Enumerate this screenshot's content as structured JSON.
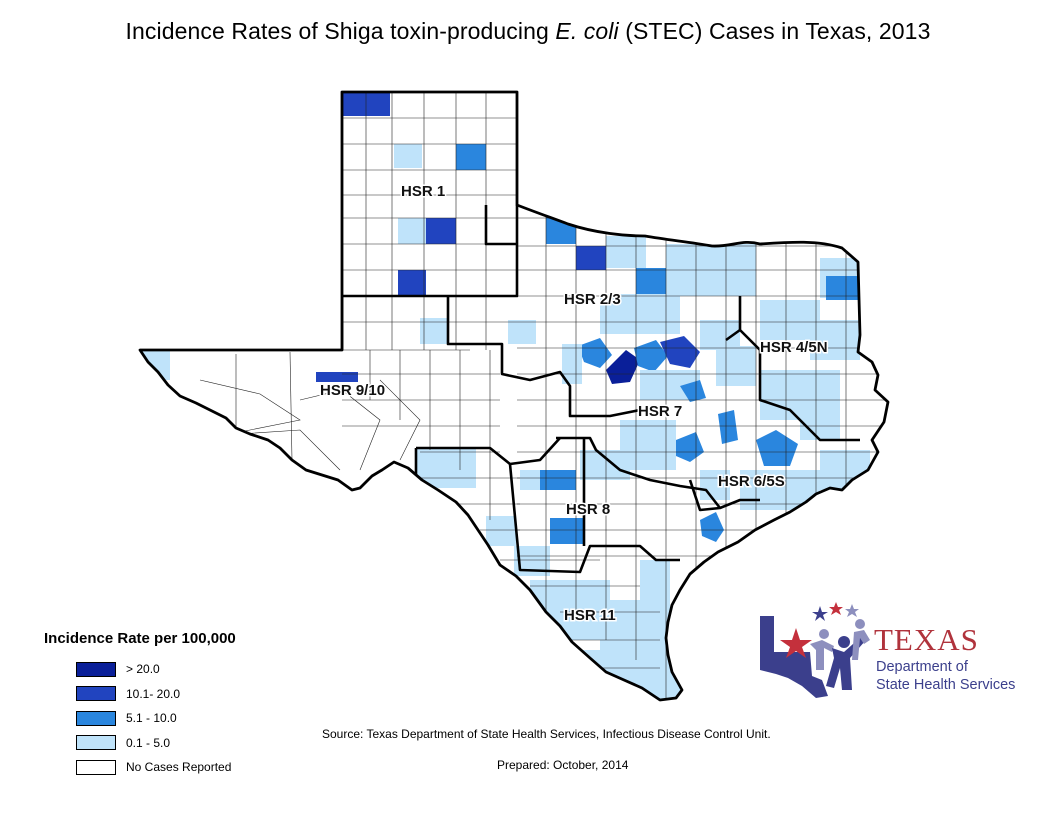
{
  "title": {
    "before": "Incidence Rates of Shiga toxin-producing ",
    "italic": "E. coli",
    "after": " (STEC) Cases in Texas, 2013"
  },
  "regions": [
    "HSR 1",
    "HSR 2/3",
    "HSR 4/5N",
    "HSR 9/10",
    "HSR 7",
    "HSR 6/5S",
    "HSR 8",
    "HSR 11"
  ],
  "legend": {
    "title": "Incidence Rate per 100,000",
    "items": [
      {
        "label": "> 20.0",
        "color": "#0a1f99"
      },
      {
        "label": "10.1- 20.0",
        "color": "#2144bf"
      },
      {
        "label": "5.1 - 10.0",
        "color": "#2a86de"
      },
      {
        "label": "0.1 - 5.0",
        "color": "#bfe3fa"
      },
      {
        "label": "No Cases Reported",
        "color": "#ffffff"
      }
    ]
  },
  "source": "Source: Texas Department of State Health Services, Infectious Disease Control Unit.",
  "prepared": "Prepared: October, 2014",
  "logo": {
    "word": "TEXAS",
    "line1": "Department of",
    "line2": "State Health Services"
  }
}
